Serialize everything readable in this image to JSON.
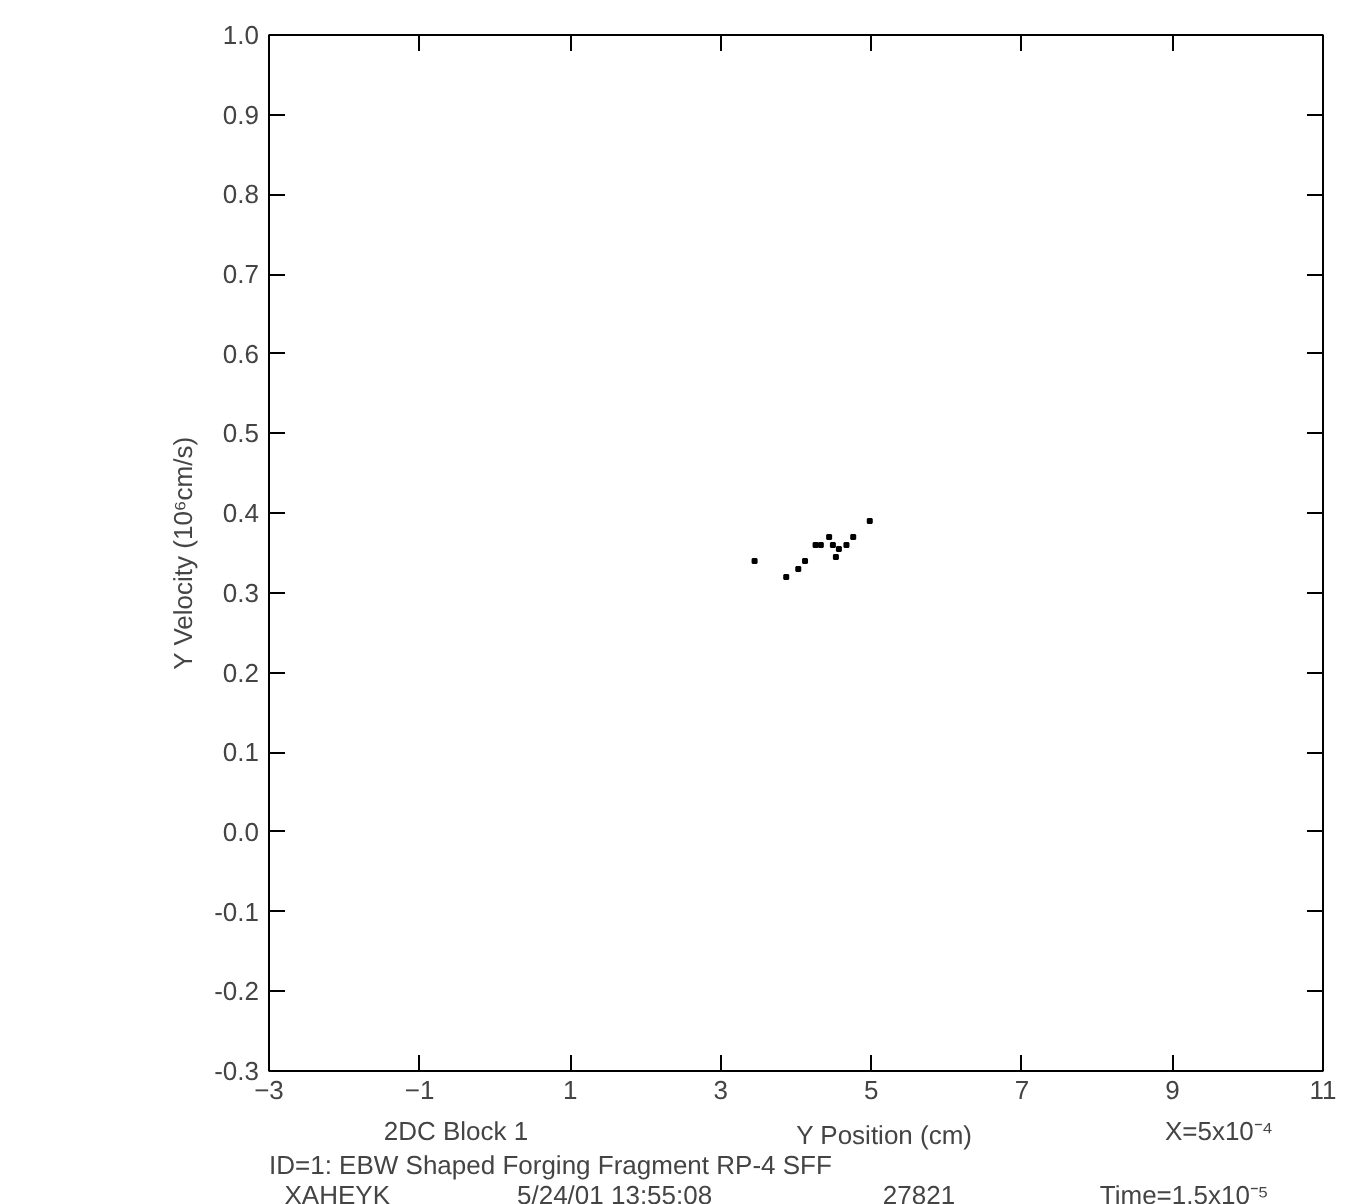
{
  "chart_data": {
    "type": "scatter",
    "xlabel": "Y Position (cm)",
    "ylabel": "Y Velocity (10⁶cm/s)",
    "x": [
      3.45,
      3.87,
      4.03,
      4.12,
      4.26,
      4.33,
      4.44,
      4.49,
      4.53,
      4.57,
      4.67,
      4.76,
      4.98
    ],
    "values": [
      0.34,
      0.32,
      0.33,
      0.34,
      0.36,
      0.36,
      0.37,
      0.36,
      0.345,
      0.355,
      0.36,
      0.37,
      0.39
    ],
    "color": "#000000",
    "marker": "square",
    "xlim": [
      -3,
      11
    ],
    "xticks": [
      -3,
      -1,
      1,
      3,
      5,
      7,
      9,
      11
    ],
    "ylim": [
      -0.3,
      1.0
    ],
    "yticks": [
      {
        "value": -0.3,
        "label": "-0.3"
      },
      {
        "value": -0.2,
        "label": "-0.2"
      },
      {
        "value": -0.1,
        "label": "-0.1"
      },
      {
        "value": 0.0,
        "label": "0.0"
      },
      {
        "value": 0.1,
        "label": "0.1"
      },
      {
        "value": 0.2,
        "label": "0.2"
      },
      {
        "value": 0.3,
        "label": "0.3"
      },
      {
        "value": 0.4,
        "label": "0.4"
      },
      {
        "value": 0.5,
        "label": "0.5"
      },
      {
        "value": 0.6,
        "label": "0.6"
      },
      {
        "value": 0.7,
        "label": "0.7"
      },
      {
        "value": 0.8,
        "label": "0.8"
      },
      {
        "value": 0.9,
        "label": "0.9"
      },
      {
        "value": 1.0,
        "label": "1.0"
      }
    ],
    "grid": false,
    "annotations": [
      "2DC Block 1",
      "X=5x10⁻⁴",
      "ID=1: EBW Shaped Forging Fragment RP-4 SFF",
      "XAHEYK",
      "5/24/01 13:55:08",
      "27821",
      "Time=1.5x10⁻⁵"
    ]
  }
}
